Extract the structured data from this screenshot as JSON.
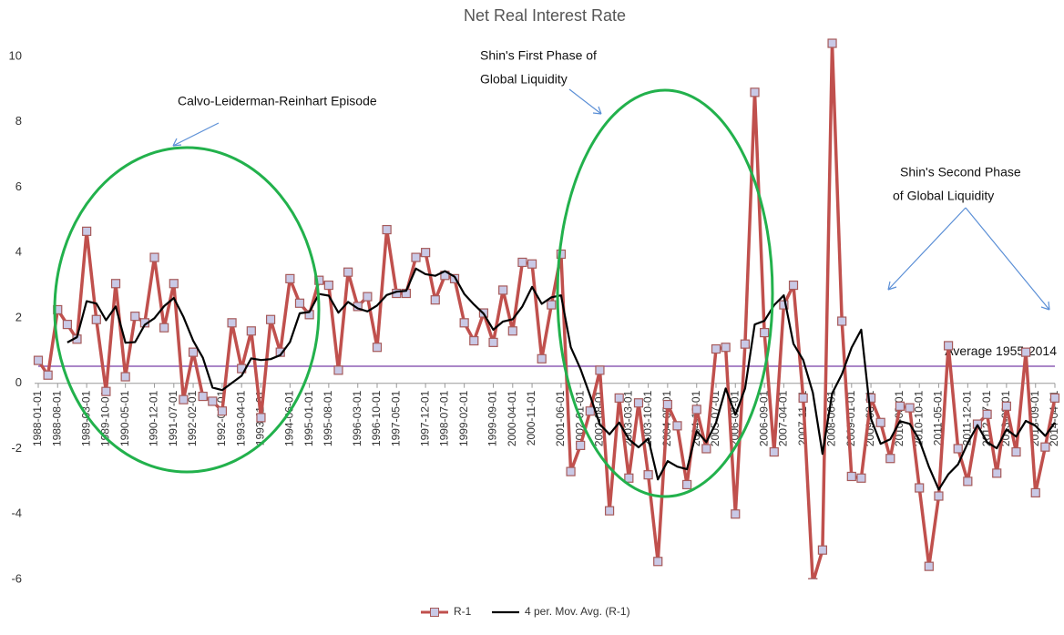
{
  "chart_data": {
    "type": "line",
    "title": "Net Real Interest Rate",
    "categories": [
      "1988-01-01",
      null,
      "1988-08-01",
      null,
      null,
      "1989-03-01",
      null,
      "1989-10-01",
      null,
      "1990-05-01",
      null,
      null,
      "1990-12-01",
      null,
      "1991-07-01",
      null,
      "1992-02-01",
      null,
      null,
      "1992-09-01",
      null,
      "1993-04-01",
      null,
      "1993-11-01",
      null,
      null,
      "1994-06-01",
      null,
      "1995-01-01",
      null,
      "1995-08-01",
      null,
      null,
      "1996-03-01",
      null,
      "1996-10-01",
      null,
      "1997-05-01",
      null,
      null,
      "1997-12-01",
      null,
      "1998-07-01",
      null,
      "1999-02-01",
      null,
      null,
      "1999-09-01",
      null,
      "2000-04-01",
      null,
      "2000-11-01",
      null,
      null,
      "2001-06-01",
      null,
      "2002-01-01",
      null,
      "2002-08-01",
      null,
      null,
      "2003-03-01",
      null,
      "2003-10-01",
      null,
      "2004-05-01",
      null,
      null,
      "2004-12-01",
      null,
      "2005-07-01",
      null,
      "2006-02-01",
      null,
      null,
      "2006-09-01",
      null,
      "2007-04-01",
      null,
      "2007-11-01",
      null,
      null,
      "2008-06-01",
      null,
      "2009-01-01",
      null,
      "2009-08-01",
      null,
      null,
      "2010-03-01",
      null,
      "2010-10-01",
      null,
      "2011-05-01",
      null,
      null,
      "2011-12-01",
      null,
      "2012-07-01",
      null,
      "2013-02-01",
      null,
      null,
      "2013-09-01",
      null,
      "2014-04-01"
    ],
    "series": [
      {
        "name": "R-1",
        "color": "#c0504d",
        "marker_fill": "#c9c9e6",
        "values": [
          0.7,
          0.25,
          2.25,
          1.8,
          1.35,
          4.65,
          1.95,
          -0.25,
          3.05,
          0.2,
          2.05,
          1.85,
          3.85,
          1.7,
          3.05,
          -0.5,
          0.95,
          -0.4,
          -0.55,
          -0.85,
          1.85,
          0.45,
          1.6,
          -1.05,
          1.95,
          0.95,
          3.2,
          2.45,
          2.1,
          3.15,
          3.0,
          0.4,
          3.4,
          2.35,
          2.65,
          1.1,
          4.7,
          2.75,
          2.75,
          3.85,
          4.0,
          2.55,
          3.3,
          3.2,
          1.85,
          1.3,
          2.15,
          1.25,
          2.85,
          1.6,
          3.7,
          3.65,
          0.75,
          2.4,
          3.95,
          -2.7,
          -1.9,
          -0.85,
          0.4,
          -3.9,
          -0.45,
          -2.9,
          -0.6,
          -2.8,
          -5.45,
          -0.65,
          -1.3,
          -3.1,
          -0.8,
          -2.0,
          1.05,
          1.1,
          -4.0,
          1.2,
          8.9,
          1.55,
          -2.1,
          2.4,
          3.0,
          -0.45,
          -6.1,
          -5.1,
          10.4,
          1.9,
          -2.85,
          -2.9,
          -0.45,
          -1.2,
          -2.3,
          -0.7,
          -0.75,
          -3.2,
          -5.6,
          -3.45,
          1.15,
          -2.0,
          -3.0,
          -1.25,
          -0.95,
          -2.75,
          -0.7,
          -2.1,
          0.95,
          -3.35,
          -1.95,
          -0.45
        ]
      },
      {
        "name": "4 per. Mov. Avg. (R-1)",
        "color": "#000000",
        "values": [
          null,
          null,
          null,
          1.25,
          1.41,
          2.51,
          2.44,
          1.93,
          2.35,
          1.24,
          1.26,
          1.79,
          1.99,
          2.36,
          2.61,
          2.03,
          1.3,
          0.78,
          -0.13,
          -0.21,
          0.01,
          0.23,
          0.76,
          0.71,
          0.74,
          0.86,
          1.26,
          2.14,
          2.18,
          2.73,
          2.68,
          2.16,
          2.49,
          2.29,
          2.2,
          2.38,
          2.7,
          2.8,
          2.83,
          3.51,
          3.34,
          3.29,
          3.43,
          3.26,
          2.73,
          2.41,
          2.13,
          1.64,
          1.89,
          1.96,
          2.35,
          2.95,
          2.43,
          2.63,
          2.69,
          1.1,
          0.44,
          -0.38,
          -1.26,
          -1.56,
          -1.2,
          -1.71,
          -1.96,
          -1.69,
          -2.94,
          -2.38,
          -2.55,
          -2.63,
          -1.46,
          -1.8,
          -1.21,
          -0.16,
          -0.96,
          -0.16,
          1.8,
          1.91,
          2.39,
          2.69,
          1.21,
          0.71,
          -0.29,
          -2.16,
          -0.31,
          0.28,
          1.09,
          1.64,
          -1.08,
          -1.85,
          -1.71,
          -1.16,
          -1.24,
          -1.74,
          -2.56,
          -3.25,
          -2.78,
          -2.48,
          -1.83,
          -1.28,
          -1.8,
          -1.99,
          -1.41,
          -1.63,
          -1.15,
          -1.3,
          -1.61,
          -1.2
        ]
      }
    ],
    "reference_line": {
      "value": 0.52,
      "label": "Average 1955-2014",
      "color": "#8e5fb5"
    },
    "annotations": [
      "Calvo-Leiderman-Reinhart Episode",
      "Shin's First Phase of",
      "Global Liquidity",
      "Shin's Second Phase",
      "of Global Liquidity"
    ],
    "ylim": [
      -6,
      11
    ],
    "yticks": [
      -6,
      -4,
      -2,
      0,
      2,
      4,
      6,
      8,
      10
    ],
    "grid": false,
    "legend": "bottom"
  }
}
